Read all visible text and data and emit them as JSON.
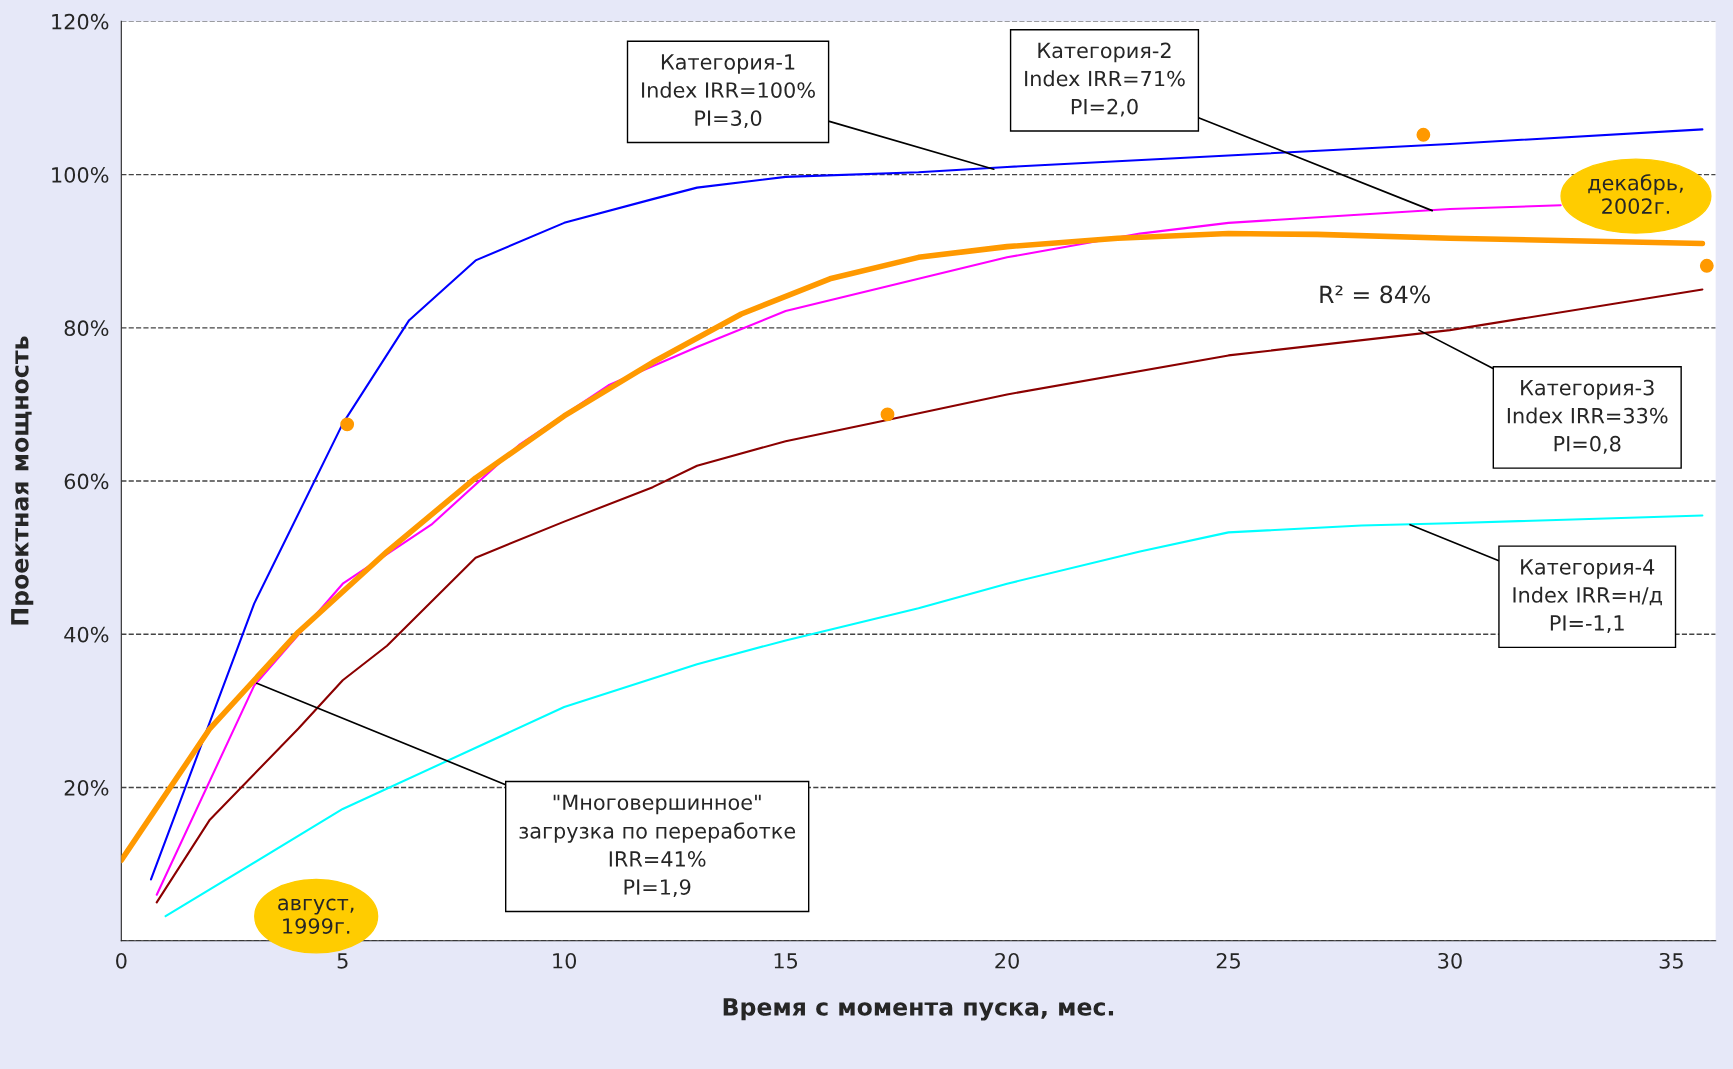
{
  "chart_data": {
    "type": "line",
    "xlabel": "Время с момента пуска, мес.",
    "ylabel": "Проектная мощность",
    "xlim": [
      0,
      36
    ],
    "xticks": [
      0,
      5,
      10,
      15,
      20,
      25,
      30,
      35
    ],
    "ylim": [
      0,
      120
    ],
    "yticks": [
      {
        "value": 0,
        "label": null
      },
      {
        "value": 20,
        "label": "20%"
      },
      {
        "value": 40,
        "label": "40%"
      },
      {
        "value": 60,
        "label": "60%"
      },
      {
        "value": 80,
        "label": "80%"
      },
      {
        "value": 100,
        "label": "100%"
      },
      {
        "value": 120,
        "label": "120%"
      }
    ],
    "grid": "y",
    "line_style": "solid",
    "marker": "none",
    "legend": false,
    "series": [
      {
        "color": "#0000ff",
        "x": [
          0.67,
          3,
          5,
          6.5,
          8,
          10,
          12,
          13,
          15,
          18,
          20,
          25,
          30,
          35.7
        ],
        "values": [
          8,
          44,
          67.5,
          81,
          88.8,
          93.7,
          96.8,
          98.3,
          99.7,
          100.3,
          101,
          102.5,
          104,
          105.9
        ]
      },
      {
        "color": "#ff00ff",
        "x": [
          0.8,
          3,
          5,
          7,
          9,
          11,
          13,
          15,
          18,
          20,
          23,
          25,
          30,
          32.5
        ],
        "values": [
          6,
          33.3,
          46.6,
          54.3,
          64.8,
          72.5,
          77.5,
          82.2,
          86.4,
          89.2,
          92.3,
          93.7,
          95.5,
          96
        ]
      },
      {
        "color": "#8b0000",
        "x": [
          0.8,
          2,
          4,
          5,
          6,
          8,
          10,
          12,
          13,
          15,
          17,
          20,
          25,
          30,
          35.7
        ],
        "values": [
          5,
          15.8,
          27.7,
          34,
          38.5,
          50,
          54.7,
          59.2,
          62,
          65.2,
          67.6,
          71.3,
          76.4,
          79.7,
          85
        ]
      },
      {
        "color": "#00ffff",
        "x": [
          1,
          5,
          10,
          13,
          15,
          18,
          20,
          23,
          25,
          28,
          30,
          35.7
        ],
        "values": [
          3.2,
          17.2,
          30.5,
          36.1,
          39.2,
          43.4,
          46.6,
          50.8,
          53.3,
          54.2,
          54.5,
          55.5
        ]
      },
      {
        "color": "#ff9900",
        "x": [
          0,
          2,
          4,
          6,
          8,
          10,
          12,
          14,
          16,
          18,
          20,
          22.5,
          25,
          27,
          30,
          35.7
        ],
        "values": [
          10.5,
          27.7,
          40.3,
          50.8,
          60.4,
          68.5,
          75.5,
          81.8,
          86.4,
          89.2,
          90.6,
          91.7,
          92.3,
          92.2,
          91.7,
          91
        ]
      },
      {
        "type": "scatter",
        "marker": "circle",
        "color": "#ff9900",
        "x": [
          5.1,
          17.3,
          29.4,
          35.8
        ],
        "values": [
          67.4,
          68.7,
          105.2,
          88.1
        ]
      }
    ],
    "annotations": [
      {
        "text": "Категория-1\nIndex IRR=100%\nPI=3,0",
        "x": 19.7,
        "y": 100.7
      },
      {
        "text": "Категория-2\nIndex IRR=71%\nPI=2,0",
        "x": 29.6,
        "y": 95.3
      },
      {
        "text": "Категория-3\nIndex IRR=33%\nPI=0,8",
        "x": 29.3,
        "y": 79.7
      },
      {
        "text": "Категория-4\nIndex IRR=н/д\nPI=-1,1",
        "x": 29.1,
        "y": 54.3
      },
      {
        "text": "\"Многовершинное\"\nзагрузка по переработке\nIRR=41%\nPI=1,9",
        "x": 3.06,
        "y": 33.6
      },
      "R² = 84%",
      "август,\n1999г.",
      "декабрь,\n2002г."
    ]
  }
}
